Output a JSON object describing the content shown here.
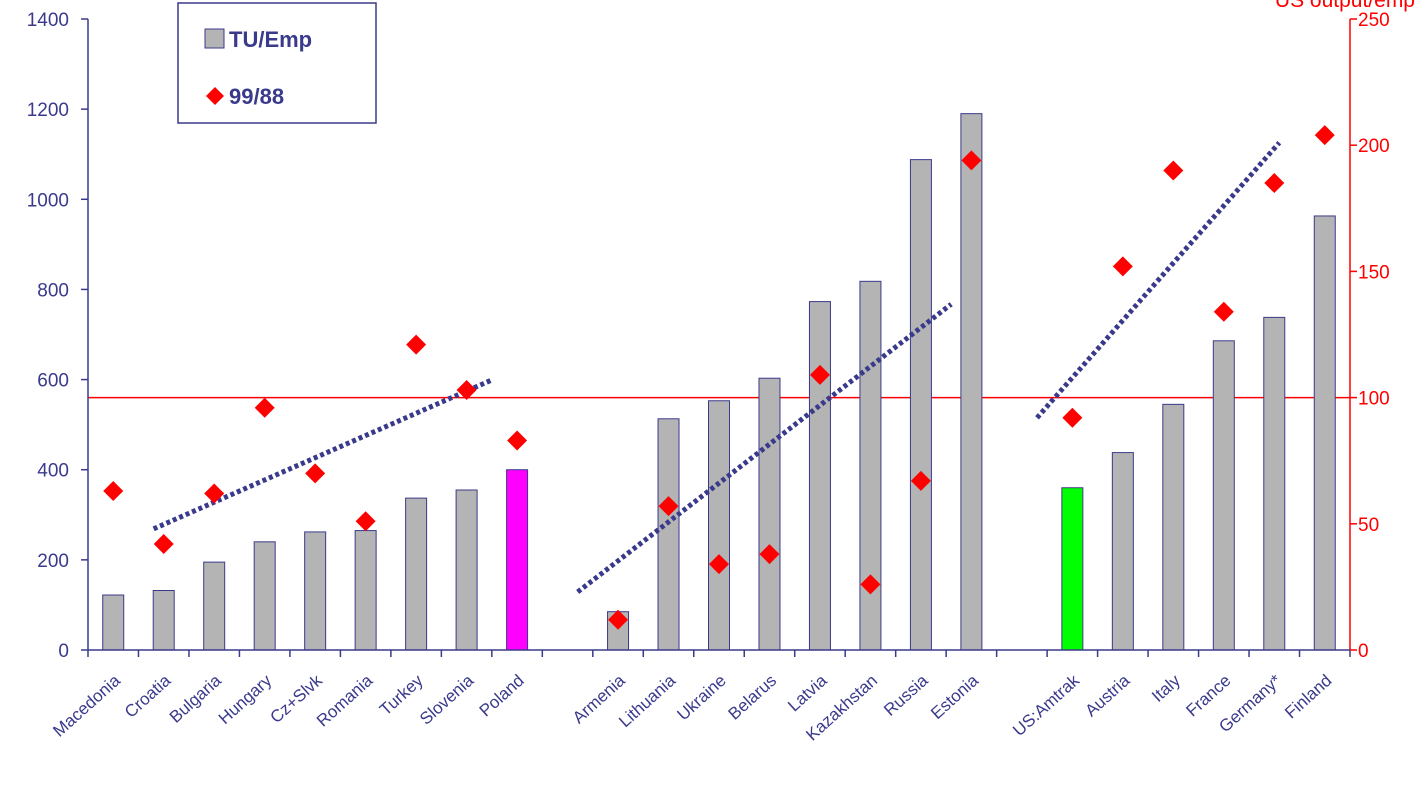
{
  "chart_data": {
    "type": "bar",
    "categories": [
      "Macedonia",
      "Croatia",
      "Bulgaria",
      "Hungary",
      "Cz+Slvk",
      "Romania",
      "Turkey",
      "Slovenia",
      "Poland",
      "",
      "Armenia",
      "Lithuania",
      "Ukraine",
      "Belarus",
      "Latvia",
      "Kazakhstan",
      "Russia",
      "Estonia",
      "",
      "US:Amtrak",
      "Austria",
      "Italy",
      "France",
      "Germany*",
      "Finland"
    ],
    "series": [
      {
        "name": "TU/Emp",
        "type": "bar",
        "axis": "left",
        "values": [
          122,
          132,
          195,
          240,
          262,
          265,
          337,
          355,
          400,
          null,
          85,
          513,
          553,
          603,
          773,
          818,
          1088,
          1190,
          null,
          360,
          438,
          545,
          686,
          738,
          963
        ],
        "color": "#b4b4b4",
        "highlight_colors": {
          "8": "#ff00ff",
          "19": "#00ff00"
        }
      },
      {
        "name": "99/88",
        "type": "scatter",
        "axis": "right",
        "values": [
          63,
          42,
          62,
          96,
          70,
          51,
          121,
          103,
          83,
          null,
          12,
          57,
          34,
          38,
          109,
          26,
          67,
          194,
          null,
          92,
          152,
          190,
          134,
          185,
          204
        ],
        "color": "#ff0000"
      }
    ],
    "trendlines": [
      {
        "from_index": 0.8,
        "to_index": 7.5,
        "y_from": 48,
        "y_to": 107,
        "axis": "right"
      },
      {
        "from_index": 9.2,
        "to_index": 16.6,
        "y_from": 23,
        "y_to": 137,
        "axis": "right"
      },
      {
        "from_index": 18.3,
        "to_index": 23.1,
        "y_from": 92,
        "y_to": 201,
        "axis": "right"
      }
    ],
    "reference_line": {
      "axis": "right",
      "value": 100,
      "color": "#ff0000"
    },
    "y_left": {
      "min": 0,
      "max": 1400,
      "ticks": [
        0,
        200,
        400,
        600,
        800,
        1000,
        1200,
        1400
      ]
    },
    "y_right": {
      "min": 0,
      "max": 250,
      "ticks": [
        0,
        50,
        100,
        150,
        200,
        250
      ],
      "label": "US output/emp"
    },
    "legend": {
      "position": "top-left"
    }
  }
}
